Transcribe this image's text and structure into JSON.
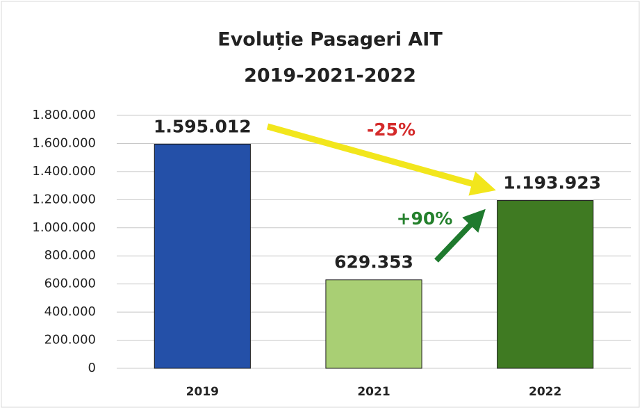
{
  "chart_data": {
    "type": "bar",
    "title": "Evoluție Pasageri AIT",
    "subtitle": "2019-2021-2022",
    "categories": [
      "2019",
      "2021",
      "2022"
    ],
    "values": [
      1595012,
      629353,
      1193923
    ],
    "value_labels": [
      "1.595.012",
      "629.353",
      "1.193.923"
    ],
    "colors": [
      "#2450a8",
      "#a9cf74",
      "#3f7a22"
    ],
    "ylim": [
      0,
      1800000
    ],
    "yticks": [
      0,
      {
        "value": 200000,
        "label": "200.000"
      },
      {
        "value": 400000,
        "label": "400.000"
      },
      {
        "value": 600000,
        "label": "600.000"
      },
      {
        "value": 800000,
        "label": "800.000"
      },
      {
        "value": 1000000,
        "label": "1.000.000"
      },
      {
        "value": 1200000,
        "label": "1.200.000"
      },
      {
        "value": 1400000,
        "label": "1.400.000"
      },
      {
        "value": 1600000,
        "label": "1.600.000"
      },
      {
        "value": 1800000,
        "label": "1.800.000"
      }
    ],
    "grid": true,
    "annotations": [
      {
        "text": "-25%",
        "color": "#d42a2a"
      },
      {
        "text": "+90%",
        "color": "#24802c"
      }
    ]
  }
}
